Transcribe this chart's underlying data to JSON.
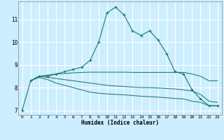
{
  "title": "",
  "xlabel": "Humidex (Indice chaleur)",
  "ylabel": "",
  "bg_color": "#cceeff",
  "line_color": "#1a7a6e",
  "grid_color": "#ffffff",
  "xlim": [
    -0.5,
    23.5
  ],
  "ylim": [
    6.8,
    11.8
  ],
  "xticks": [
    0,
    1,
    2,
    3,
    4,
    5,
    6,
    7,
    8,
    9,
    10,
    11,
    12,
    13,
    14,
    15,
    16,
    17,
    18,
    19,
    20,
    21,
    22,
    23
  ],
  "yticks": [
    7,
    8,
    9,
    10,
    11
  ],
  "lines": [
    {
      "x": [
        0,
        1,
        2,
        3,
        4,
        5,
        6,
        7,
        8,
        9,
        10,
        11,
        12,
        13,
        14,
        15,
        16,
        17,
        18,
        19,
        20,
        21,
        22,
        23
      ],
      "y": [
        7.0,
        8.3,
        8.5,
        8.5,
        8.6,
        8.7,
        8.8,
        8.9,
        9.2,
        10.0,
        11.3,
        11.55,
        11.2,
        10.5,
        10.3,
        10.5,
        10.1,
        9.5,
        8.7,
        8.6,
        7.9,
        7.5,
        7.2,
        7.2
      ],
      "marker": true
    },
    {
      "x": [
        1,
        2,
        3,
        4,
        5,
        6,
        7,
        8,
        9,
        10,
        11,
        12,
        13,
        14,
        15,
        16,
        17,
        18,
        19,
        20,
        21,
        22,
        23
      ],
      "y": [
        8.3,
        8.5,
        8.55,
        8.6,
        8.62,
        8.65,
        8.67,
        8.68,
        8.68,
        8.68,
        8.68,
        8.68,
        8.67,
        8.67,
        8.67,
        8.67,
        8.67,
        8.67,
        8.67,
        8.6,
        8.5,
        8.3,
        8.3
      ],
      "marker": false
    },
    {
      "x": [
        1,
        2,
        3,
        4,
        5,
        6,
        7,
        8,
        9,
        10,
        11,
        12,
        13,
        14,
        15,
        16,
        17,
        18,
        19,
        20,
        21,
        22,
        23
      ],
      "y": [
        8.3,
        8.5,
        8.45,
        8.4,
        8.35,
        8.3,
        8.25,
        8.2,
        8.15,
        8.1,
        8.07,
        8.05,
        8.02,
        8.0,
        8.0,
        7.98,
        7.96,
        7.94,
        7.9,
        7.85,
        7.7,
        7.4,
        7.35
      ],
      "marker": false
    },
    {
      "x": [
        1,
        2,
        3,
        4,
        5,
        6,
        7,
        8,
        9,
        10,
        11,
        12,
        13,
        14,
        15,
        16,
        17,
        18,
        19,
        20,
        21,
        22,
        23
      ],
      "y": [
        8.3,
        8.45,
        8.35,
        8.2,
        8.1,
        8.0,
        7.9,
        7.8,
        7.75,
        7.72,
        7.7,
        7.68,
        7.65,
        7.62,
        7.6,
        7.58,
        7.55,
        7.52,
        7.5,
        7.4,
        7.35,
        7.2,
        7.2
      ],
      "marker": false
    }
  ]
}
